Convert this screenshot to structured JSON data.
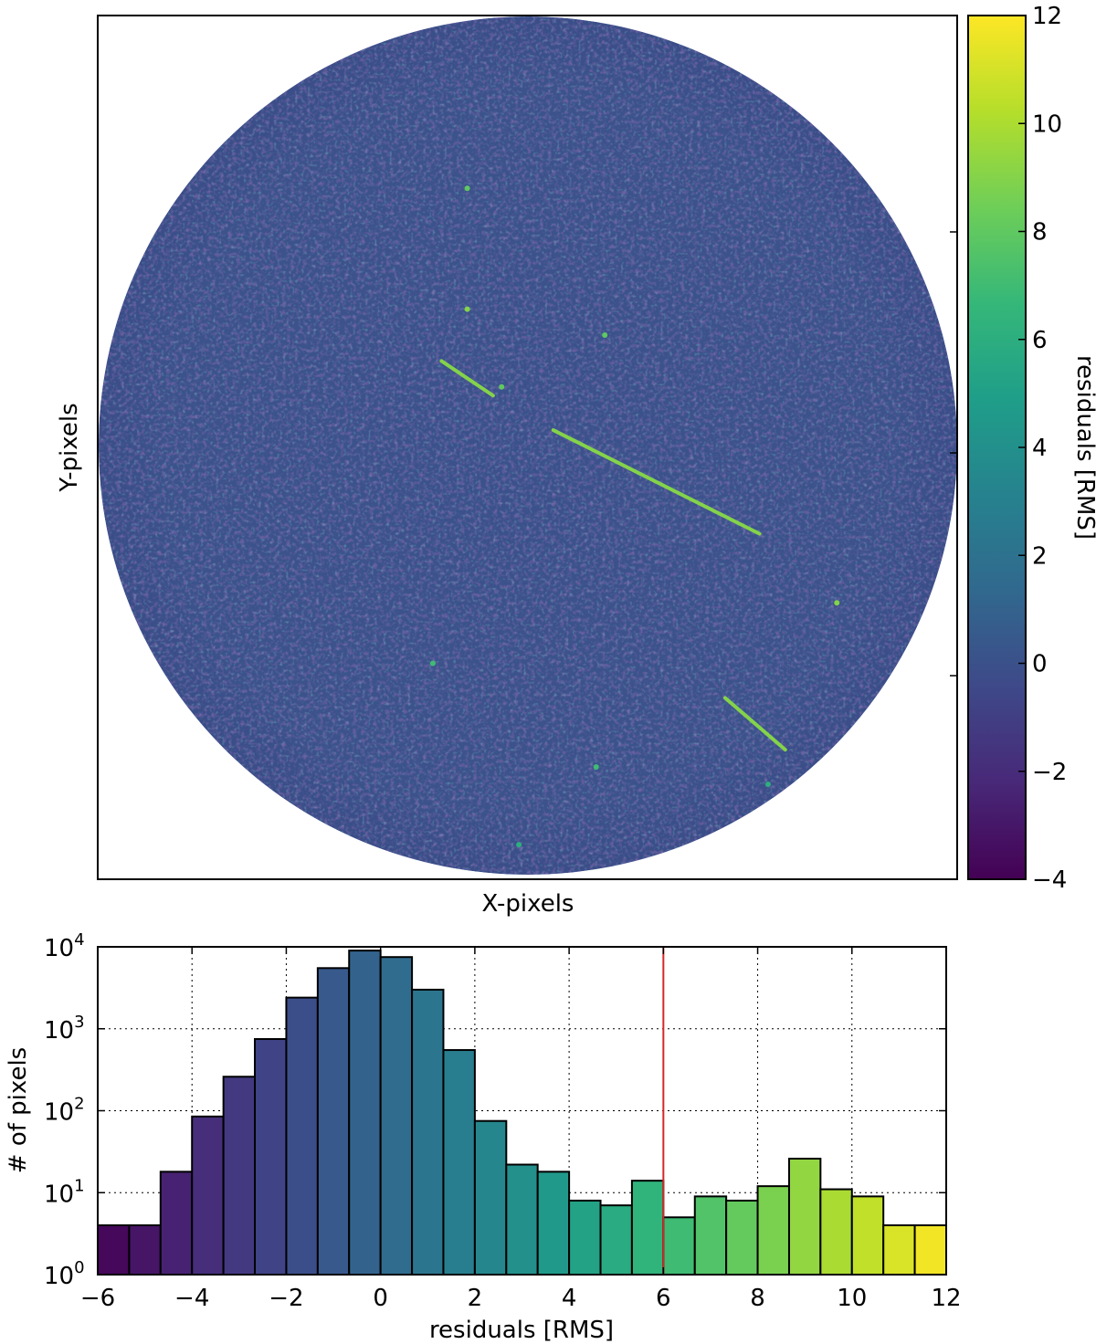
{
  "chart_data": [
    {
      "type": "heatmap",
      "xlabel": "X-pixels",
      "ylabel": "Y-pixels",
      "colorbar": {
        "label": "residuals [RMS]",
        "range": [
          -4,
          12
        ],
        "ticks": [
          -4,
          -2,
          0,
          2,
          4,
          6,
          8,
          10,
          12
        ],
        "tick_labels": [
          "−4",
          "−2",
          "0",
          "2",
          "4",
          "6",
          "8",
          "10",
          "12"
        ],
        "colormap": [
          "#440154",
          "#482878",
          "#3e4989",
          "#31688e",
          "#26828e",
          "#1f9e89",
          "#35b779",
          "#6ece58",
          "#b5de2b",
          "#fde725"
        ]
      },
      "image": {
        "shape": "circular field of view",
        "background_level": 0,
        "features": [
          {
            "kind": "streak",
            "from": [
              0.4,
              0.4
            ],
            "to": [
              0.46,
              0.44
            ],
            "value": 9
          },
          {
            "kind": "streak",
            "from": [
              0.53,
              0.48
            ],
            "to": [
              0.77,
              0.6
            ],
            "value": 9
          },
          {
            "kind": "streak",
            "from": [
              0.73,
              0.79
            ],
            "to": [
              0.8,
              0.85
            ],
            "value": 9
          },
          {
            "kind": "dot",
            "at": [
              0.43,
              0.2
            ],
            "value": 8
          },
          {
            "kind": "dot",
            "at": [
              0.43,
              0.34
            ],
            "value": 9
          },
          {
            "kind": "dot",
            "at": [
              0.59,
              0.37
            ],
            "value": 8
          },
          {
            "kind": "dot",
            "at": [
              0.47,
              0.43
            ],
            "value": 8
          },
          {
            "kind": "dot",
            "at": [
              0.86,
              0.68
            ],
            "value": 9
          },
          {
            "kind": "dot",
            "at": [
              0.39,
              0.75
            ],
            "value": 7
          },
          {
            "kind": "dot",
            "at": [
              0.58,
              0.87
            ],
            "value": 7
          },
          {
            "kind": "dot",
            "at": [
              0.78,
              0.89
            ],
            "value": 6
          },
          {
            "kind": "dot",
            "at": [
              0.49,
              0.96
            ],
            "value": 6
          }
        ]
      }
    },
    {
      "type": "bar",
      "xlabel": "residuals [RMS]",
      "ylabel": "# of pixels",
      "xlim": [
        -6,
        12
      ],
      "ylim": [
        1,
        10000
      ],
      "yscale": "log",
      "grid": true,
      "xticks": [
        -6,
        -4,
        -2,
        0,
        2,
        4,
        6,
        8,
        10,
        12
      ],
      "xtick_labels": [
        "−6",
        "−4",
        "−2",
        "0",
        "2",
        "4",
        "6",
        "8",
        "10",
        "12"
      ],
      "yticks": [
        {
          "base": "10",
          "exp": "0",
          "value": 1
        },
        {
          "base": "10",
          "exp": "1",
          "value": 10
        },
        {
          "base": "10",
          "exp": "2",
          "value": 100
        },
        {
          "base": "10",
          "exp": "3",
          "value": 1000
        },
        {
          "base": "10",
          "exp": "4",
          "value": 10000
        }
      ],
      "bin_edges": [
        -6,
        -5.333,
        -4.667,
        -4,
        -3.333,
        -2.667,
        -2,
        -1.333,
        -0.667,
        0,
        0.667,
        1.333,
        2,
        2.667,
        3.333,
        4,
        4.667,
        5.333,
        6,
        6.667,
        7.333,
        8,
        8.667,
        9.333,
        10,
        10.667,
        11.333,
        12
      ],
      "counts": [
        4,
        4,
        18,
        85,
        260,
        750,
        2400,
        5500,
        9000,
        7500,
        3000,
        550,
        75,
        22,
        18,
        8,
        7,
        14,
        5,
        9,
        8,
        12,
        26,
        11,
        9,
        4,
        4
      ],
      "threshold_line": {
        "x": 6,
        "color": "#d62728"
      }
    }
  ]
}
